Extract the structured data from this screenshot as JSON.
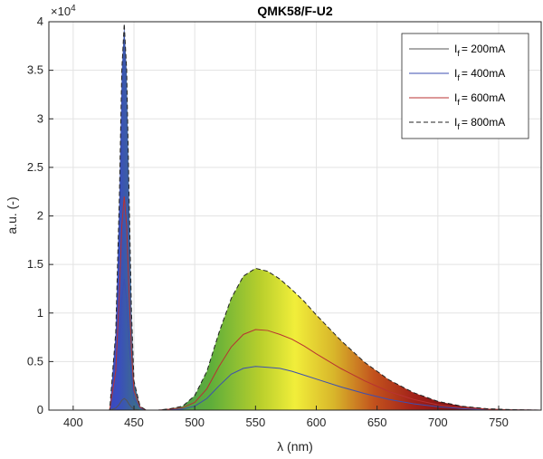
{
  "chart_data": {
    "type": "line",
    "title": "QMK58/F-U2",
    "xlabel": "λ (nm)",
    "ylabel": "a.u. (-)",
    "y_exponent_label": "×10",
    "y_exponent_power": "4",
    "xlim": [
      380,
      785
    ],
    "ylim": [
      0,
      40000
    ],
    "xticks": [
      400,
      450,
      500,
      550,
      600,
      650,
      700,
      750
    ],
    "yticks": [
      0,
      5000,
      10000,
      15000,
      20000,
      25000,
      30000,
      35000,
      40000
    ],
    "ytick_labels": [
      "0",
      "0.5",
      "1",
      "1.5",
      "2",
      "2.5",
      "3",
      "3.5",
      "4"
    ],
    "grid": true,
    "legend_position": "top-right",
    "legend_prefix": "I",
    "legend_subscript": "f",
    "series": [
      {
        "name": "= 200mA",
        "color": "#555555",
        "dash": "solid",
        "x": [
          380,
          430,
          435,
          438,
          440,
          442,
          444,
          446,
          448,
          450,
          455,
          460,
          470,
          480,
          490,
          500,
          510,
          520,
          530,
          540,
          550,
          560,
          570,
          580,
          590,
          600,
          620,
          640,
          660,
          680,
          700,
          720,
          740,
          760,
          785
        ],
        "y": [
          0,
          0,
          200,
          600,
          1000,
          1200,
          1000,
          600,
          300,
          100,
          0,
          0,
          0,
          0,
          0,
          0,
          0,
          0,
          0,
          0,
          0,
          0,
          0,
          0,
          0,
          0,
          0,
          0,
          0,
          0,
          0,
          0,
          0,
          0,
          0
        ]
      },
      {
        "name": "= 400mA",
        "color": "#3d4fb0",
        "dash": "solid",
        "x": [
          380,
          430,
          435,
          438,
          440,
          442,
          444,
          446,
          448,
          450,
          455,
          460,
          470,
          480,
          490,
          500,
          510,
          520,
          530,
          540,
          550,
          560,
          570,
          580,
          590,
          600,
          620,
          640,
          660,
          680,
          700,
          720,
          740,
          760,
          785
        ],
        "y": [
          0,
          0,
          2500,
          7000,
          11500,
          13500,
          11500,
          7000,
          3500,
          1200,
          200,
          0,
          0,
          50,
          100,
          400,
          1200,
          2500,
          3700,
          4300,
          4500,
          4400,
          4300,
          4000,
          3600,
          3200,
          2400,
          1700,
          1100,
          650,
          350,
          150,
          60,
          20,
          0
        ]
      },
      {
        "name": "= 600mA",
        "color": "#b83232",
        "dash": "solid",
        "x": [
          380,
          430,
          435,
          438,
          440,
          442,
          444,
          446,
          448,
          450,
          455,
          460,
          470,
          480,
          490,
          500,
          510,
          520,
          530,
          540,
          550,
          560,
          570,
          580,
          590,
          600,
          620,
          640,
          660,
          680,
          700,
          720,
          740,
          760,
          785
        ],
        "y": [
          0,
          0,
          4000,
          12000,
          19000,
          22000,
          19000,
          12000,
          6000,
          2000,
          300,
          0,
          0,
          100,
          250,
          800,
          2200,
          4500,
          6500,
          7800,
          8300,
          8200,
          7800,
          7300,
          6600,
          5800,
          4300,
          3000,
          1900,
          1100,
          550,
          250,
          100,
          30,
          0
        ]
      },
      {
        "name": "= 800mA",
        "color": "#222222",
        "dash": "dashed",
        "x": [
          380,
          430,
          435,
          438,
          440,
          442,
          444,
          446,
          448,
          450,
          455,
          460,
          470,
          480,
          490,
          500,
          510,
          520,
          530,
          540,
          550,
          560,
          570,
          580,
          590,
          600,
          620,
          640,
          660,
          680,
          700,
          720,
          740,
          760,
          785
        ],
        "y": [
          0,
          0,
          8000,
          22000,
          35000,
          39800,
          35000,
          22000,
          10000,
          3000,
          400,
          0,
          0,
          150,
          400,
          1500,
          4000,
          8000,
          11500,
          13800,
          14600,
          14300,
          13500,
          12400,
          11200,
          9800,
          7200,
          4900,
          3100,
          1800,
          900,
          400,
          150,
          50,
          0
        ]
      }
    ]
  }
}
